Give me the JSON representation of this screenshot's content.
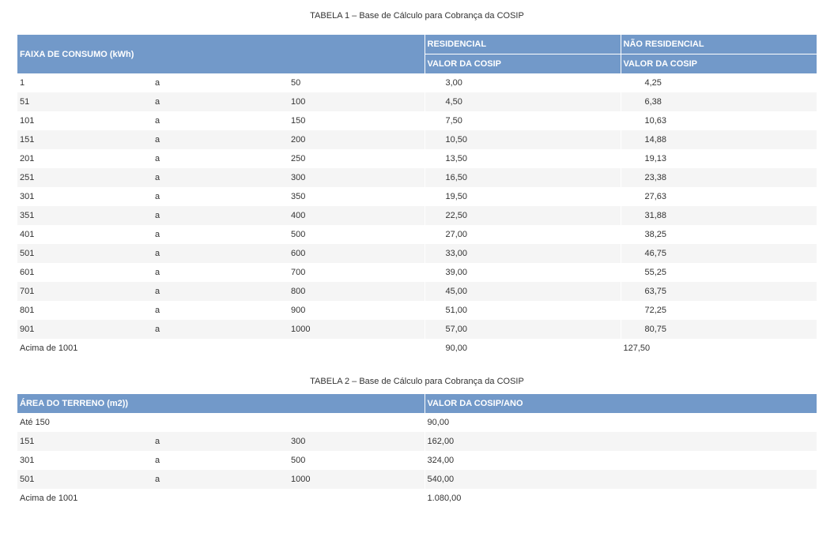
{
  "table1": {
    "caption": "TABELA 1 – Base de Cálculo para Cobrança da COSIP",
    "header_faixa": "FAIXA DE CONSUMO (kWh)",
    "header_residencial": "RESIDENCIAL",
    "header_nao_residencial": "NÃO RESIDENCIAL",
    "header_valor_res": "VALOR DA COSIP",
    "header_valor_nres": "VALOR DA COSIP",
    "rows": [
      {
        "from": "1",
        "sep": "a",
        "to": "50",
        "res": "3,00",
        "nres": "4,25"
      },
      {
        "from": "51",
        "sep": "a",
        "to": "100",
        "res": "4,50",
        "nres": "6,38"
      },
      {
        "from": "101",
        "sep": "a",
        "to": "150",
        "res": "7,50",
        "nres": "10,63"
      },
      {
        "from": "151",
        "sep": "a",
        "to": "200",
        "res": "10,50",
        "nres": "14,88"
      },
      {
        "from": "201",
        "sep": "a",
        "to": "250",
        "res": "13,50",
        "nres": "19,13"
      },
      {
        "from": "251",
        "sep": "a",
        "to": "300",
        "res": "16,50",
        "nres": "23,38"
      },
      {
        "from": "301",
        "sep": "a",
        "to": "350",
        "res": "19,50",
        "nres": "27,63"
      },
      {
        "from": "351",
        "sep": "a",
        "to": "400",
        "res": "22,50",
        "nres": "31,88"
      },
      {
        "from": "401",
        "sep": "a",
        "to": "500",
        "res": "27,00",
        "nres": "38,25"
      },
      {
        "from": "501",
        "sep": "a",
        "to": "600",
        "res": "33,00",
        "nres": "46,75"
      },
      {
        "from": "601",
        "sep": "a",
        "to": "700",
        "res": "39,00",
        "nres": "55,25"
      },
      {
        "from": "701",
        "sep": "a",
        "to": "800",
        "res": "45,00",
        "nres": "63,75"
      },
      {
        "from": "801",
        "sep": "a",
        "to": "900",
        "res": "51,00",
        "nres": "72,25"
      },
      {
        "from": "901",
        "sep": "a",
        "to": "1000",
        "res": "57,00",
        "nres": "80,75"
      }
    ],
    "last_row": {
      "label": "Acima de 1001",
      "res": "90,00",
      "nres": "127,50"
    }
  },
  "table2": {
    "caption": "TABELA 2 – Base de Cálculo para Cobrança da COSIP",
    "header_area": "ÁREA DO TERRENO (m2))",
    "header_valor": "VALOR DA COSIP/ANO",
    "first_row": {
      "label": "Até 150",
      "value": "90,00"
    },
    "rows": [
      {
        "from": "151",
        "sep": "a",
        "to": "300",
        "value": "162,00"
      },
      {
        "from": "301",
        "sep": "a",
        "to": "500",
        "value": "324,00"
      },
      {
        "from": "501",
        "sep": "a",
        "to": "1000",
        "value": "540,00"
      }
    ],
    "last_row": {
      "label": "Acima de 1001",
      "value": "1.080,00"
    }
  }
}
